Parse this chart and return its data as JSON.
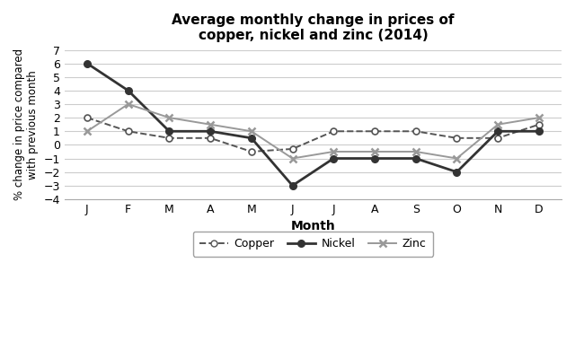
{
  "title": "Average monthly change in prices of\ncopper, nickel and zinc (2014)",
  "xlabel": "Month",
  "ylabel": "% change in price compared\nwith previous month",
  "months": [
    "J",
    "F",
    "M",
    "A",
    "M",
    "J",
    "J",
    "A",
    "S",
    "O",
    "N",
    "D"
  ],
  "copper": [
    2,
    1,
    0.5,
    0.5,
    -0.5,
    -0.3,
    1,
    1,
    1,
    0.5,
    0.5,
    1.5
  ],
  "nickel": [
    6,
    4,
    1,
    1,
    0.5,
    -3,
    -1,
    -1,
    -1,
    -2,
    1,
    1
  ],
  "zinc": [
    1,
    3,
    2,
    1.5,
    1,
    -1,
    -0.5,
    -0.5,
    -0.5,
    -1,
    1.5,
    2
  ],
  "ylim": [
    -4,
    7
  ],
  "yticks": [
    -4,
    -3,
    -2,
    -1,
    0,
    1,
    2,
    3,
    4,
    5,
    6,
    7
  ],
  "copper_color": "#555555",
  "nickel_color": "#333333",
  "zinc_color": "#999999",
  "bg_color": "#ffffff",
  "grid_color": "#cccccc"
}
